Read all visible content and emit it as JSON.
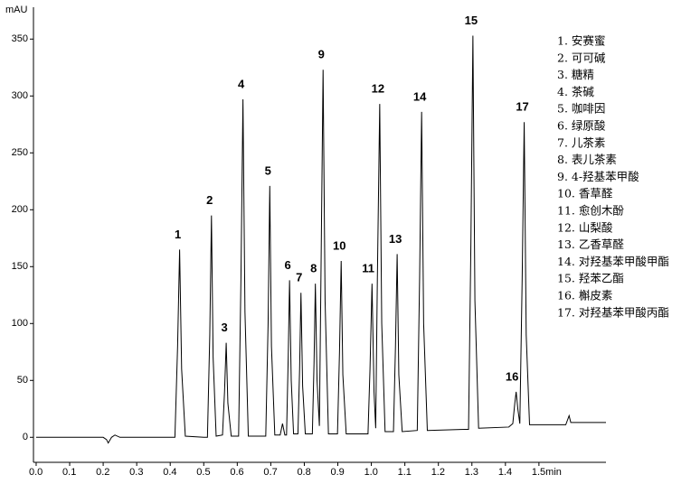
{
  "chart_data": {
    "type": "line",
    "y_label": "mAU",
    "color": "#000000",
    "x": [
      0,
      0.2,
      0.21,
      0.215,
      0.225,
      0.235,
      0.25,
      0.4,
      0.414,
      0.422,
      0.428,
      0.434,
      0.445,
      0.5,
      0.511,
      0.518,
      0.523,
      0.528,
      0.537,
      0.556,
      0.562,
      0.567,
      0.572,
      0.582,
      0.604,
      0.611,
      0.617,
      0.623,
      0.633,
      0.68,
      0.685,
      0.692,
      0.697,
      0.702,
      0.712,
      0.728,
      0.735,
      0.742,
      0.747,
      0.752,
      0.756,
      0.761,
      0.768,
      0.781,
      0.786,
      0.79,
      0.795,
      0.803,
      0.824,
      0.829,
      0.833,
      0.838,
      0.845,
      0.85,
      0.856,
      0.862,
      0.872,
      0.899,
      0.905,
      0.91,
      0.915,
      0.925,
      0.99,
      0.996,
      1.002,
      1.008,
      1.013,
      1.018,
      1.025,
      1.031,
      1.041,
      1.066,
      1.072,
      1.077,
      1.082,
      1.092,
      1.137,
      1.144,
      1.15,
      1.156,
      1.167,
      1.28,
      1.29,
      1.297,
      1.303,
      1.309,
      1.32,
      1.41,
      1.422,
      1.428,
      1.432,
      1.437,
      1.443,
      1.45,
      1.456,
      1.462,
      1.472,
      1.58,
      1.585,
      1.59,
      1.595,
      1.7
    ],
    "values": [
      0,
      0,
      -2,
      -5,
      0,
      2,
      0,
      0,
      0,
      80,
      165,
      60,
      1,
      0,
      0,
      90,
      195,
      70,
      1,
      2,
      40,
      83,
      30,
      1,
      1,
      140,
      297,
      110,
      1,
      1,
      1,
      100,
      221,
      80,
      2,
      2,
      12,
      2,
      2,
      70,
      138,
      50,
      3,
      3,
      60,
      127,
      45,
      3,
      3,
      65,
      135,
      50,
      10,
      150,
      323,
      120,
      3,
      3,
      75,
      155,
      55,
      3,
      3,
      60,
      135,
      40,
      8,
      140,
      293,
      100,
      5,
      5,
      80,
      161,
      55,
      5,
      6,
      140,
      286,
      100,
      6,
      7,
      7,
      170,
      353,
      120,
      8,
      9,
      12,
      30,
      40,
      25,
      12,
      140,
      277,
      90,
      11,
      11,
      15,
      19,
      13,
      13
    ],
    "xlim": [
      -0.008,
      1.7
    ],
    "ylim": [
      -22,
      378
    ],
    "xticks": [
      {
        "value": 0,
        "label": "0.0"
      },
      0.1,
      0.2,
      0.3,
      0.4,
      0.5,
      0.6,
      0.7,
      0.8,
      0.9,
      {
        "value": 1,
        "label": "1.0"
      },
      1.1,
      1.2,
      1.3,
      1.4,
      {
        "value": 1.5,
        "label": "1.5min"
      }
    ],
    "yticks": [
      0,
      50,
      100,
      150,
      200,
      250,
      300,
      350
    ],
    "annotations": [
      {
        "text": "1",
        "x": 0.428,
        "y": 165
      },
      {
        "text": "2",
        "x": 0.523,
        "y": 195
      },
      {
        "text": "3",
        "x": 0.567,
        "y": 83
      },
      {
        "text": "4",
        "x": 0.617,
        "y": 297
      },
      {
        "text": "5",
        "x": 0.697,
        "y": 221
      },
      {
        "text": "6",
        "x": 0.756,
        "y": 138
      },
      {
        "text": "7",
        "x": 0.79,
        "y": 127
      },
      {
        "text": "8",
        "x": 0.833,
        "y": 135
      },
      {
        "text": "9",
        "x": 0.856,
        "y": 323
      },
      {
        "text": "10",
        "x": 0.91,
        "y": 155
      },
      {
        "text": "11",
        "x": 0.996,
        "y": 135
      },
      {
        "text": "12",
        "x": 1.025,
        "y": 293
      },
      {
        "text": "13",
        "x": 1.077,
        "y": 161
      },
      {
        "text": "14",
        "x": 1.15,
        "y": 286
      },
      {
        "text": "15",
        "x": 1.303,
        "y": 353
      },
      {
        "text": "16",
        "x": 1.425,
        "y": 40
      },
      {
        "text": "17",
        "x": 1.456,
        "y": 277
      }
    ],
    "legend_items": [
      "1. 安赛蜜",
      "2. 可可碱",
      "3. 糖精",
      "4. 茶碱",
      "5. 咖啡因",
      "6. 绿原酸",
      "7. 儿茶素",
      "8. 表儿茶素",
      "9. 4-羟基苯甲酸",
      "10. 香草醛",
      "11. 愈创木酚",
      "12. 山梨酸",
      "13. 乙香草醛",
      "14. 对羟基苯甲酸甲酯",
      "15. 羟苯乙酯",
      "16. 槲皮素",
      "17. 对羟基苯甲酸丙酯"
    ]
  }
}
